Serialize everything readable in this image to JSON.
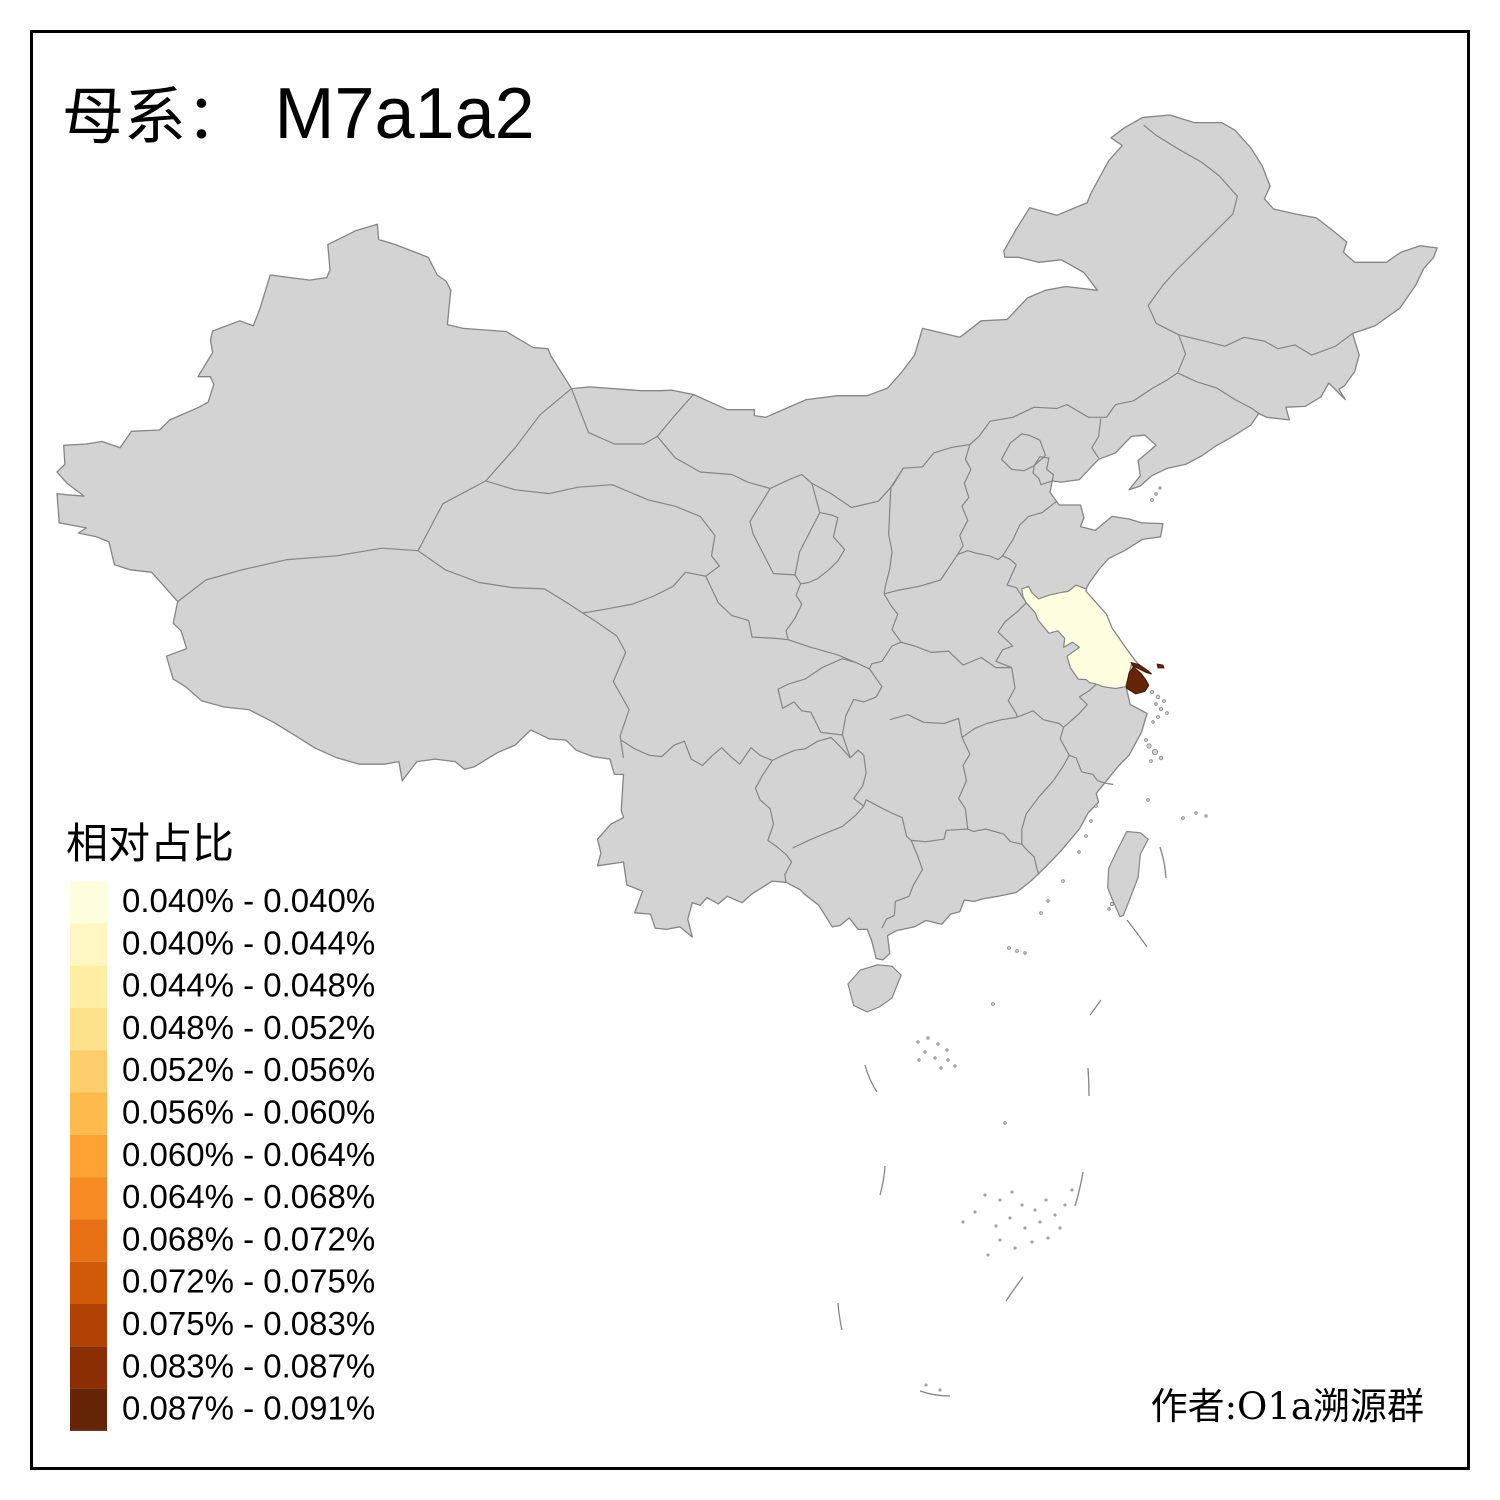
{
  "title": {
    "prefix": "母系：",
    "value": "M7a1a2"
  },
  "legend": {
    "title": "相对占比",
    "classes": [
      {
        "label": "0.040% - 0.040%",
        "color": "#FFFFE0"
      },
      {
        "label": "0.040% - 0.044%",
        "color": "#FFF7C2"
      },
      {
        "label": "0.044% - 0.048%",
        "color": "#FFEDA3"
      },
      {
        "label": "0.048% - 0.052%",
        "color": "#FEE18B"
      },
      {
        "label": "0.052% - 0.056%",
        "color": "#FDCF6C"
      },
      {
        "label": "0.056% - 0.060%",
        "color": "#FDBB4E"
      },
      {
        "label": "0.060% - 0.064%",
        "color": "#FDA233"
      },
      {
        "label": "0.064% - 0.068%",
        "color": "#F78A22"
      },
      {
        "label": "0.068% - 0.072%",
        "color": "#E77014"
      },
      {
        "label": "0.072% - 0.075%",
        "color": "#D15A09"
      },
      {
        "label": "0.075% - 0.083%",
        "color": "#B04304"
      },
      {
        "label": "0.083% - 0.087%",
        "color": "#8C2E04"
      },
      {
        "label": "0.087% - 0.091%",
        "color": "#662506"
      }
    ]
  },
  "attribution": "作者:O1a溯源群",
  "map": {
    "background": "#FFFFFF",
    "frame_color": "#000000",
    "land_fill": "#D3D3D3",
    "border_color": "#858585",
    "highlights": {
      "jiangsu": {
        "color": "#FFFEE0",
        "legend_label": "0.040% - 0.040%"
      },
      "shanghai": {
        "color": "#662506",
        "legend_label": "0.087% - 0.091%"
      }
    }
  }
}
